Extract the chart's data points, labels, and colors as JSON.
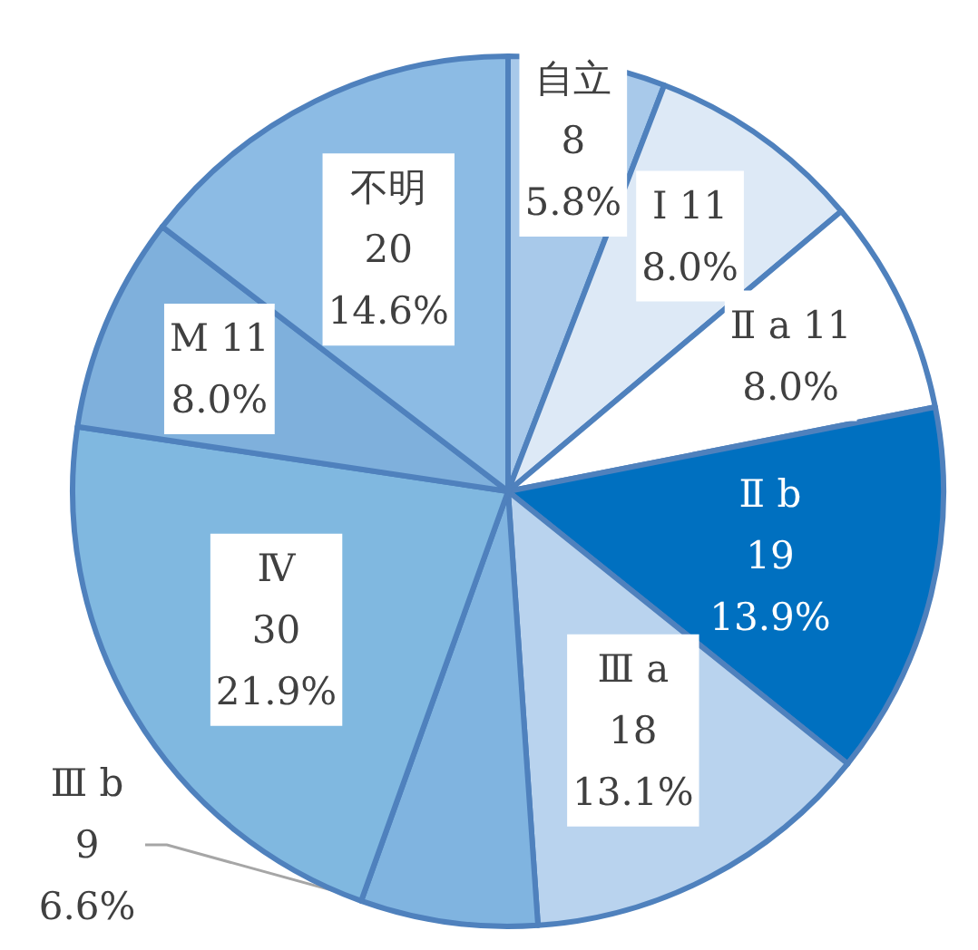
{
  "chart_data": {
    "type": "pie",
    "categories": [
      "自立",
      "Ⅰ",
      "Ⅱ a",
      "Ⅱ b",
      "Ⅲ a",
      "Ⅲ b",
      "Ⅳ",
      "M",
      "不明"
    ],
    "values": [
      8,
      11,
      11,
      19,
      18,
      9,
      30,
      11,
      20
    ],
    "colors": [
      "#a8c9ea",
      "#dde9f6",
      "#ffffff",
      "#0070c0",
      "#b9d3ee",
      "#80b4e0",
      "#80b8e0",
      "#7fb0dc",
      "#8cbbe4"
    ],
    "value_labels": [
      "8\n5.8%",
      "11\n8.0%",
      "11\n8.0%",
      "19\n13.9%",
      "18\n13.1%",
      "9\n6.6%",
      "30\n21.9%",
      "11\n8.0%",
      "20\n14.6%"
    ]
  }
}
